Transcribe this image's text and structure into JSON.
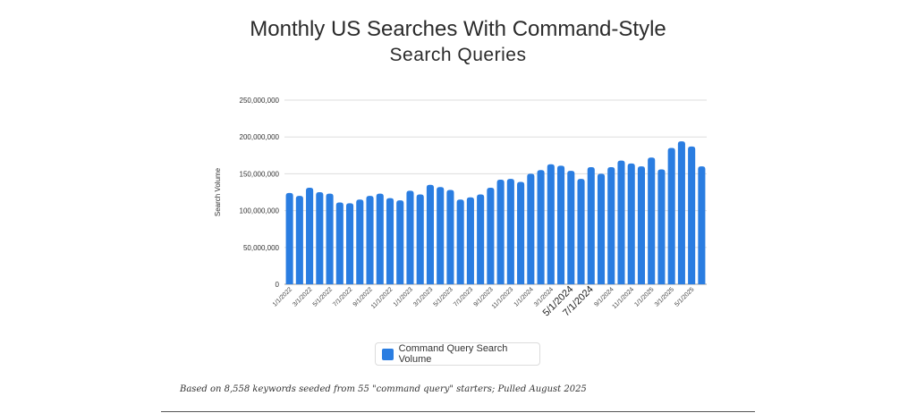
{
  "chart_data": {
    "type": "bar",
    "title_line1": "Monthly US Searches With Command-Style",
    "title_line2": "Search Queries",
    "ylabel": "Search Volume",
    "xlabel": "",
    "ylim": [
      0,
      250000000
    ],
    "y_ticks": [
      {
        "value": 0,
        "label": "0"
      },
      {
        "value": 50000000,
        "label": "50,000,000"
      },
      {
        "value": 100000000,
        "label": "100,000,000"
      },
      {
        "value": 150000000,
        "label": "150,000,000"
      },
      {
        "value": 200000000,
        "label": "200,000,000"
      },
      {
        "value": 250000000,
        "label": "250,000,000"
      }
    ],
    "categories": [
      "1/1/2022",
      "2/1/2022",
      "3/1/2022",
      "4/1/2022",
      "5/1/2022",
      "6/1/2022",
      "7/1/2022",
      "8/1/2022",
      "9/1/2022",
      "10/1/2022",
      "11/1/2022",
      "12/1/2022",
      "1/1/2023",
      "2/1/2023",
      "3/1/2023",
      "4/1/2023",
      "5/1/2023",
      "6/1/2023",
      "7/1/2023",
      "8/1/2023",
      "9/1/2023",
      "10/1/2023",
      "11/1/2023",
      "12/1/2023",
      "1/1/2024",
      "2/1/2024",
      "3/1/2024",
      "4/1/2024",
      "5/1/2024",
      "6/1/2024",
      "7/1/2024",
      "8/1/2024",
      "9/1/2024",
      "10/1/2024",
      "11/1/2024",
      "12/1/2024",
      "1/1/2025",
      "2/1/2025",
      "3/1/2025",
      "4/1/2025",
      "5/1/2025",
      "6/1/2025"
    ],
    "x_tick_labels": [
      {
        "index": 0,
        "label": "1/1/2022",
        "large": false
      },
      {
        "index": 2,
        "label": "3/1/2022",
        "large": false
      },
      {
        "index": 4,
        "label": "5/1/2022",
        "large": false
      },
      {
        "index": 6,
        "label": "7/1/2022",
        "large": false
      },
      {
        "index": 8,
        "label": "9/1/2022",
        "large": false
      },
      {
        "index": 10,
        "label": "11/1/2022",
        "large": false
      },
      {
        "index": 12,
        "label": "1/1/2023",
        "large": false
      },
      {
        "index": 14,
        "label": "3/1/2023",
        "large": false
      },
      {
        "index": 16,
        "label": "5/1/2023",
        "large": false
      },
      {
        "index": 18,
        "label": "7/1/2023",
        "large": false
      },
      {
        "index": 20,
        "label": "9/1/2023",
        "large": false
      },
      {
        "index": 22,
        "label": "11/1/2023",
        "large": false
      },
      {
        "index": 24,
        "label": "1/1/2024",
        "large": false
      },
      {
        "index": 26,
        "label": "3/1/2024",
        "large": false
      },
      {
        "index": 28,
        "label": "5/1/2024",
        "large": true
      },
      {
        "index": 30,
        "label": "7/1/2024",
        "large": true
      },
      {
        "index": 32,
        "label": "9/1/2024",
        "large": false
      },
      {
        "index": 34,
        "label": "11/1/2024",
        "large": false
      },
      {
        "index": 36,
        "label": "1/1/2025",
        "large": false
      },
      {
        "index": 38,
        "label": "3/1/2025",
        "large": false
      },
      {
        "index": 40,
        "label": "5/1/2025",
        "large": false
      }
    ],
    "series": [
      {
        "name": "Command Query Search Volume",
        "color": "#2a7de1",
        "values": [
          124000000,
          120000000,
          131000000,
          125000000,
          123000000,
          111000000,
          110000000,
          115000000,
          120000000,
          123000000,
          117000000,
          114000000,
          127000000,
          122000000,
          135000000,
          132000000,
          128000000,
          115000000,
          118000000,
          122000000,
          131000000,
          142000000,
          143000000,
          139000000,
          150000000,
          155000000,
          163000000,
          161000000,
          154000000,
          143000000,
          159000000,
          150000000,
          159000000,
          168000000,
          164000000,
          160000000,
          172000000,
          156000000,
          185000000,
          194000000,
          187000000,
          160000000
        ]
      }
    ],
    "grid": true,
    "legend_position": "bottom-center"
  },
  "footnote": "Based on 8,558 keywords seeded from 55 \"command query\" starters; Pulled August 2025"
}
